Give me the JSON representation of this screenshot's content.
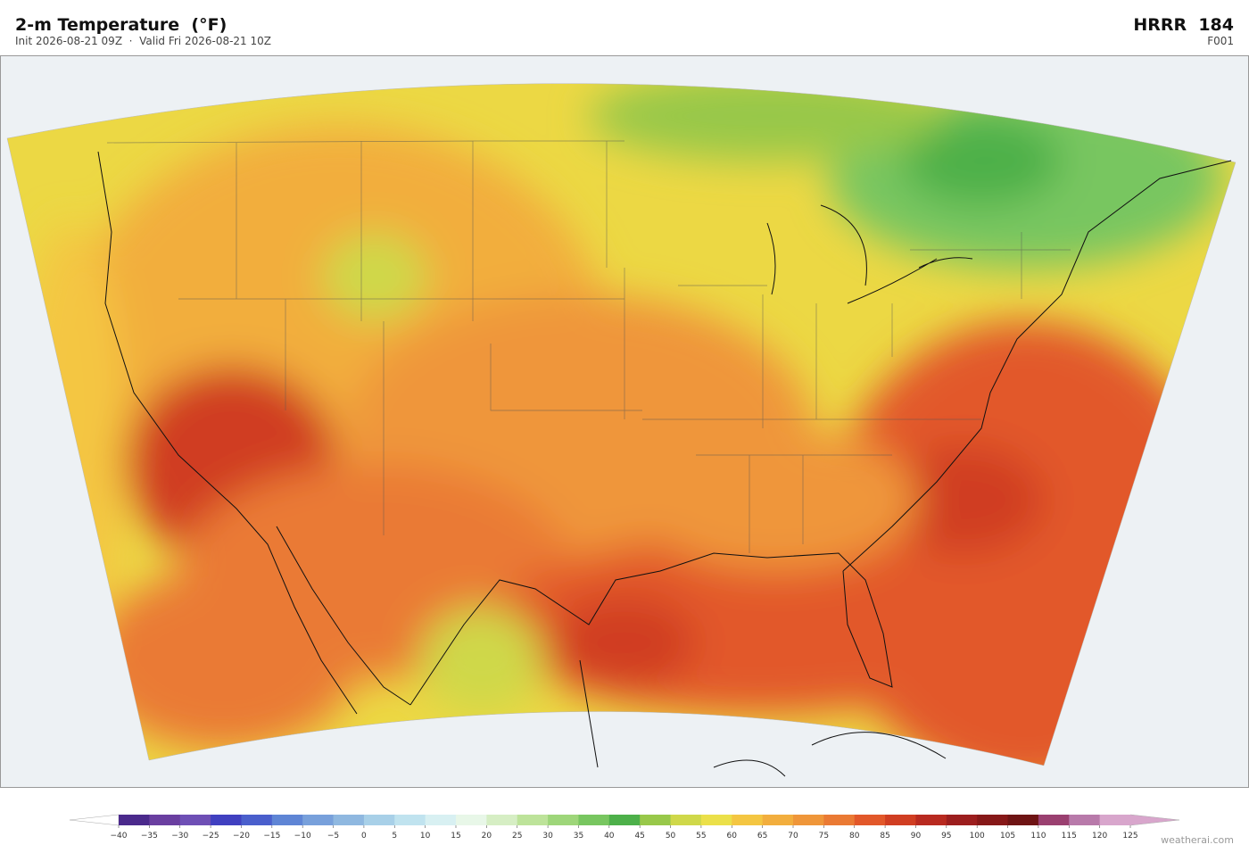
{
  "header": {
    "title": "2-m Temperature  (°F)",
    "subtitle": "Init 2026-08-21 09Z  ·  Valid Fri 2026-08-21 10Z",
    "model": "HRRR  184",
    "forecast": "F001"
  },
  "colorbar": {
    "ticks": [
      {
        "value": -40,
        "label": "−40"
      },
      {
        "value": -35,
        "label": "−35"
      },
      {
        "value": -30,
        "label": "−30"
      },
      {
        "value": -25,
        "label": "−25"
      },
      {
        "value": -20,
        "label": "−20"
      },
      {
        "value": -15,
        "label": "−15"
      },
      {
        "value": -10,
        "label": "−10"
      },
      {
        "value": -5,
        "label": "−5"
      },
      0,
      5,
      10,
      15,
      20,
      25,
      30,
      35,
      40,
      45,
      50,
      55,
      60,
      65,
      70,
      75,
      80,
      85,
      90,
      95,
      100,
      105,
      110,
      115,
      120,
      125
    ],
    "colors": [
      "#4b2a8c",
      "#6a3fa0",
      "#6e4fb5",
      "#4040c0",
      "#4a5fcc",
      "#5f85d5",
      "#78a0db",
      "#8fb8e0",
      "#a8d0e8",
      "#c0e3ef",
      "#d8f0f2",
      "#e8f7e8",
      "#d6eec4",
      "#bde39a",
      "#9ed67a",
      "#78c660",
      "#4db04a",
      "#98c84a",
      "#cfd84a",
      "#ebe04a",
      "#f4c642",
      "#f2ae3e",
      "#ef963a",
      "#ea7a34",
      "#e2582a",
      "#d03e22",
      "#b82a20",
      "#9c1e1e",
      "#861818",
      "#6e1414",
      "#9a4070",
      "#b87aaa",
      "#d8a6cc"
    ]
  },
  "footer": {
    "credit": "weatherai.com"
  }
}
